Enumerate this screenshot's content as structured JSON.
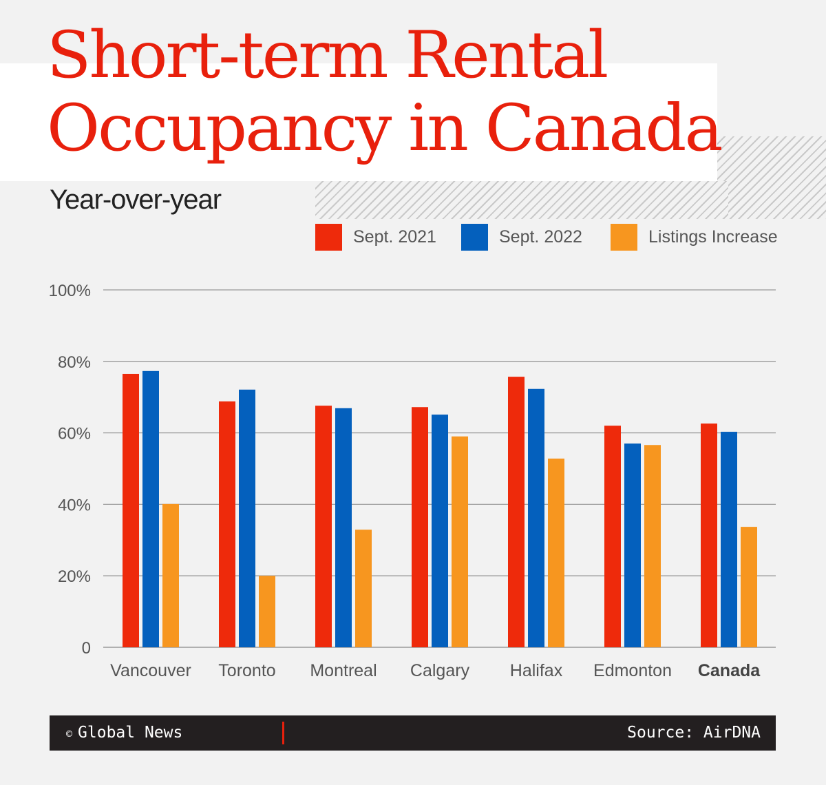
{
  "title_line1": "Short-term Rental",
  "title_line2": "Occupancy in Canada",
  "subtitle": "Year-over-year",
  "colors": {
    "title": "#e8200c",
    "sept2021": "#ee2a0b",
    "sept2022": "#0460bd",
    "listings": "#f7961f"
  },
  "chart_data": {
    "type": "bar",
    "categories": [
      "Vancouver",
      "Toronto",
      "Montreal",
      "Calgary",
      "Halifax",
      "Edmonton",
      "Canada"
    ],
    "series": [
      {
        "name": "Sept. 2021",
        "values": [
          76.5,
          68.8,
          67.6,
          67.2,
          75.7,
          62.0,
          62.6
        ]
      },
      {
        "name": "Sept. 2022",
        "values": [
          77.3,
          72.1,
          66.9,
          65.1,
          72.3,
          57.0,
          60.3
        ]
      },
      {
        "name": "Listings Increase",
        "values": [
          40.1,
          20.0,
          32.9,
          59.0,
          52.8,
          56.6,
          33.7
        ]
      }
    ],
    "yticks": [
      "0",
      "20%",
      "40%",
      "60%",
      "80%",
      "100%"
    ],
    "ylim": [
      0,
      100
    ],
    "grid": true,
    "legend": "top-right"
  },
  "footer": {
    "copyright_symbol": "©",
    "brand": "Global News",
    "source": "Source: AirDNA"
  }
}
